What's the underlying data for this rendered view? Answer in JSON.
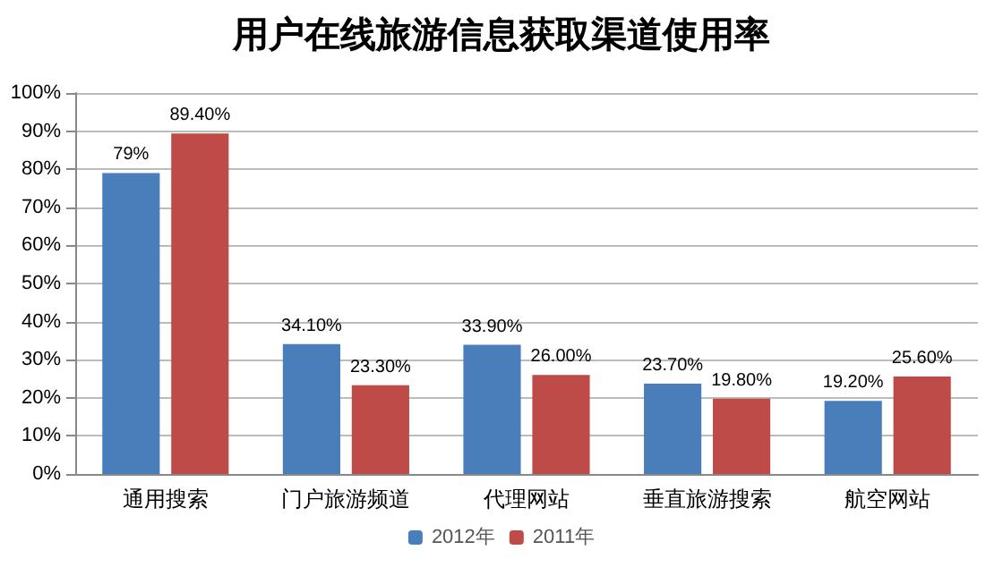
{
  "chart_data": {
    "type": "bar",
    "title": "用户在线旅游信息获取渠道使用率",
    "categories": [
      "通用搜索",
      "门户旅游频道",
      "代理网站",
      "垂直旅游搜索",
      "航空网站"
    ],
    "series": [
      {
        "name": "2012年",
        "color": "#4a7ebb",
        "values": [
          79,
          34.1,
          33.9,
          23.7,
          19.2
        ],
        "value_labels": [
          "79%",
          "34.10%",
          "33.90%",
          "23.70%",
          "19.20%"
        ]
      },
      {
        "name": "2011年",
        "color": "#be4b48",
        "values": [
          89.4,
          23.3,
          26,
          19.8,
          25.6
        ],
        "value_labels": [
          "89.40%",
          "23.30%",
          "26.00%",
          "19.80%",
          "25.60%"
        ]
      }
    ],
    "ylim": [
      0,
      100
    ],
    "yticks": [
      {
        "value": 0,
        "label": "0%"
      },
      {
        "value": 10,
        "label": "10%"
      },
      {
        "value": 20,
        "label": "20%"
      },
      {
        "value": 30,
        "label": "30%"
      },
      {
        "value": 40,
        "label": "40%"
      },
      {
        "value": 50,
        "label": "50%"
      },
      {
        "value": 60,
        "label": "60%"
      },
      {
        "value": 70,
        "label": "70%"
      },
      {
        "value": 80,
        "label": "80%"
      },
      {
        "value": 90,
        "label": "90%"
      },
      {
        "value": 100,
        "label": "100%"
      }
    ],
    "grid": "y",
    "legend": "bottom"
  }
}
